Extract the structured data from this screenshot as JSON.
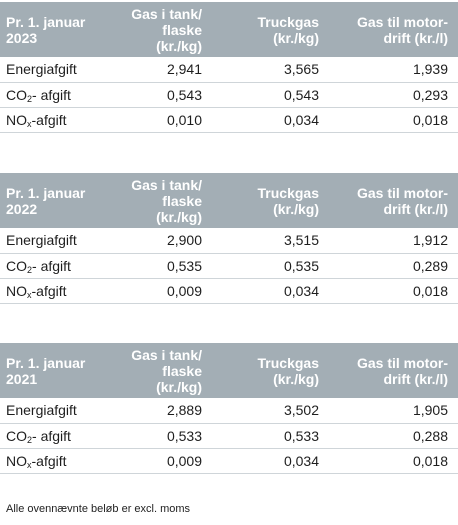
{
  "headers": {
    "col1": [
      "Gas i tank/",
      "flaske (kr./kg)"
    ],
    "col2": [
      "Truckgas",
      "(kr./kg)"
    ],
    "col3": [
      "Gas til motor-",
      "drift (kr./l)"
    ]
  },
  "row_labels": {
    "energy": "Energiafgift",
    "co2_main": "CO",
    "co2_sub": "2",
    "co2_rest": "- afgift",
    "nox_main": "NO",
    "nox_sub": "x",
    "nox_rest": "-afgift"
  },
  "tables": [
    {
      "date_line1": "Pr. 1. januar",
      "year": "2023",
      "energy": [
        "2,941",
        "3,565",
        "1,939"
      ],
      "co2": [
        "0,543",
        "0,543",
        "0,293"
      ],
      "nox": [
        "0,010",
        "0,034",
        "0,018"
      ]
    },
    {
      "date_line1": "Pr. 1. januar",
      "year": "2022",
      "energy": [
        "2,900",
        "3,515",
        "1,912"
      ],
      "co2": [
        "0,535",
        "0,535",
        "0,289"
      ],
      "nox": [
        "0,009",
        "0,034",
        "0,018"
      ]
    },
    {
      "date_line1": "Pr. 1. januar",
      "year": "2021",
      "energy": [
        "2,889",
        "3,502",
        "1,905"
      ],
      "co2": [
        "0,533",
        "0,533",
        "0,288"
      ],
      "nox": [
        "0,009",
        "0,034",
        "0,018"
      ]
    }
  ],
  "footnote": "Alle ovennævnte beløb er excl. moms",
  "colors": {
    "header_bg": "#a3aeb5",
    "header_text": "#ffffff",
    "row_divider": "#cfd5d9"
  }
}
